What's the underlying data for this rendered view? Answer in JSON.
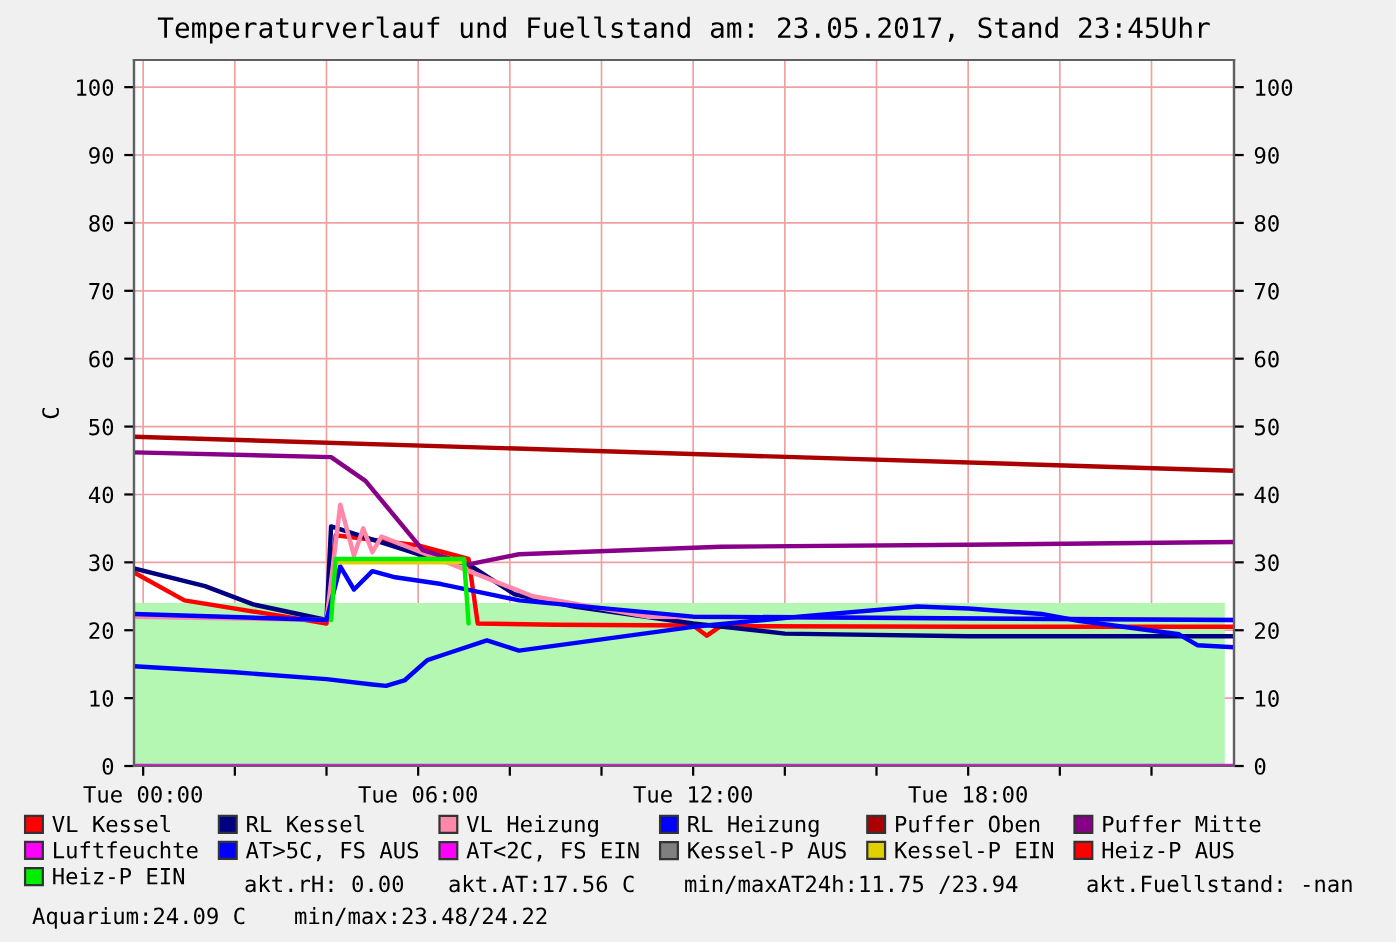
{
  "chart_data": {
    "type": "line",
    "title": "Temperaturverlauf und Fuellstand am: 23.05.2017, Stand 23:45Uhr",
    "ylabel": "C",
    "xlim": [
      "2017-05-22T23:48",
      "2017-05-23T23:48"
    ],
    "ylim": [
      0,
      104
    ],
    "y2lim": [
      0,
      104
    ],
    "xticks": [
      {
        "value": "2017-05-23T00:00",
        "label": "Tue 00:00"
      },
      {
        "value": "2017-05-23T02:00",
        "label": null
      },
      {
        "value": "2017-05-23T04:00",
        "label": null
      },
      {
        "value": "2017-05-23T06:00",
        "label": "Tue 06:00"
      },
      {
        "value": "2017-05-23T08:00",
        "label": null
      },
      {
        "value": "2017-05-23T10:00",
        "label": null
      },
      {
        "value": "2017-05-23T12:00",
        "label": "Tue 12:00"
      },
      {
        "value": "2017-05-23T14:00",
        "label": null
      },
      {
        "value": "2017-05-23T16:00",
        "label": null
      },
      {
        "value": "2017-05-23T18:00",
        "label": "Tue 18:00"
      },
      {
        "value": "2017-05-23T20:00",
        "label": null
      },
      {
        "value": "2017-05-23T22:00",
        "label": null
      }
    ],
    "yticks": [
      0,
      10,
      20,
      30,
      40,
      50,
      60,
      70,
      80,
      90,
      100
    ],
    "y2ticks": [
      0,
      10,
      20,
      30,
      40,
      50,
      60,
      70,
      80,
      90,
      100
    ],
    "grid": true,
    "legend": "bottom",
    "series": [
      {
        "type": "area",
        "color": "#b3f7b3",
        "x": [
          "2017-05-22T23:48",
          "2017-05-23T23:36"
        ],
        "values": [
          24,
          24
        ]
      },
      {
        "name": "VL Kessel",
        "color": "#ff0000",
        "x": [
          "2017-05-22T23:48",
          "2017-05-23T00:54",
          "2017-05-23T03:06",
          "2017-05-23T04:00",
          "2017-05-23T04:12",
          "2017-05-23T06:00",
          "2017-05-23T07:06",
          "2017-05-23T07:18",
          "2017-05-23T09:00",
          "2017-05-23T12:00",
          "2017-05-23T12:18",
          "2017-05-23T12:36",
          "2017-05-23T18:00",
          "2017-05-23T23:48"
        ],
        "values": [
          28.5,
          24.4,
          22,
          21,
          34,
          32.5,
          30.5,
          21,
          20.8,
          20.7,
          19.2,
          20.6,
          20.5,
          20.5
        ]
      },
      {
        "name": "RL Kessel",
        "color": "#000080",
        "x": [
          "2017-05-22T23:48",
          "2017-05-23T01:21",
          "2017-05-23T02:24",
          "2017-05-23T04:00",
          "2017-05-23T04:06",
          "2017-05-23T06:00",
          "2017-05-23T07:06",
          "2017-05-23T08:06",
          "2017-05-23T09:24",
          "2017-05-23T12:00",
          "2017-05-23T14:00",
          "2017-05-23T18:00",
          "2017-05-23T23:48"
        ],
        "values": [
          29.1,
          26.5,
          23.8,
          21.5,
          35.3,
          31.2,
          29.7,
          25.3,
          23.5,
          21,
          19.5,
          19.1,
          19.1
        ]
      },
      {
        "name": "VL Heizung",
        "color": "#ff88aa",
        "x": [
          "2017-05-22T23:48",
          "2017-05-23T04:00",
          "2017-05-23T04:18",
          "2017-05-23T04:36",
          "2017-05-23T04:48",
          "2017-05-23T05:00",
          "2017-05-23T05:12",
          "2017-05-23T05:30",
          "2017-05-23T07:00",
          "2017-05-23T08:30",
          "2017-05-23T11:00",
          "2017-05-23T23:48"
        ],
        "values": [
          22,
          21.5,
          38.5,
          31,
          35,
          31.5,
          33.8,
          33,
          29,
          25,
          22,
          21.5
        ]
      },
      {
        "name": "RL Heizung",
        "color": "#0000ff",
        "x": [
          "2017-05-22T23:48",
          "2017-05-23T04:00",
          "2017-05-23T04:18",
          "2017-05-23T04:36",
          "2017-05-23T05:00",
          "2017-05-23T05:30",
          "2017-05-23T06:30",
          "2017-05-23T08:12",
          "2017-05-23T12:00",
          "2017-05-23T23:48"
        ],
        "values": [
          22.4,
          21.5,
          29.4,
          26,
          28.7,
          27.8,
          26.8,
          24.4,
          22,
          21.5
        ]
      },
      {
        "name": "Puffer Oben",
        "color": "#aa0000",
        "x": [
          "2017-05-22T23:48",
          "2017-05-23T23:48"
        ],
        "values": [
          48.5,
          43.5
        ]
      },
      {
        "name": "Puffer Mitte",
        "color": "#880088",
        "x": [
          "2017-05-22T23:48",
          "2017-05-23T04:06",
          "2017-05-23T04:51",
          "2017-05-23T06:06",
          "2017-05-23T07:06",
          "2017-05-23T08:12",
          "2017-05-23T12:36",
          "2017-05-23T18:00",
          "2017-05-23T23:48"
        ],
        "values": [
          46.2,
          45.5,
          42,
          31.8,
          29.7,
          31.2,
          32.3,
          32.6,
          33
        ]
      },
      {
        "name": "Luftfeuchte",
        "color": "#ff00ff",
        "x": [
          "2017-05-22T23:48",
          "2017-05-23T23:48"
        ],
        "values": [
          0,
          0
        ]
      },
      {
        "name": "AT>5C, FS AUS",
        "color": "#0000ff",
        "x": [
          "2017-05-22T23:48",
          "2017-05-23T02:00",
          "2017-05-23T04:00",
          "2017-05-23T05:00",
          "2017-05-23T05:18",
          "2017-05-23T05:42",
          "2017-05-23T06:12",
          "2017-05-23T06:36",
          "2017-05-23T07:30",
          "2017-05-23T08:12",
          "2017-05-23T12:00",
          "2017-05-23T14:18",
          "2017-05-23T16:54",
          "2017-05-23T18:00",
          "2017-05-23T19:36",
          "2017-05-23T20:24",
          "2017-05-23T22:36",
          "2017-05-23T23:00",
          "2017-05-23T23:48"
        ],
        "values": [
          14.7,
          13.8,
          12.8,
          12,
          11.8,
          12.6,
          15.6,
          16.5,
          18.5,
          17,
          20.5,
          22,
          23.5,
          23.2,
          22.4,
          21.4,
          19.4,
          17.8,
          17.5
        ]
      },
      {
        "name": "AT<2C, FS EIN",
        "color": "#ff00ff",
        "values": [
          null
        ]
      },
      {
        "name": "Kessel-P AUS",
        "color": "#808080",
        "values": [
          null
        ]
      },
      {
        "name": "Kessel-P EIN",
        "color": "#e0d000",
        "x": [
          "2017-05-23T04:12",
          "2017-05-23T07:00"
        ],
        "values": [
          30,
          30
        ]
      },
      {
        "name": "Heiz-P AUS",
        "color": "#ff0000",
        "values": [
          null
        ]
      },
      {
        "name": "Heiz-P EIN",
        "color": "#00ee00",
        "x": [
          "2017-05-23T04:06",
          "2017-05-23T04:12",
          "2017-05-23T07:00",
          "2017-05-23T07:06"
        ],
        "values": [
          21.5,
          30.5,
          30.5,
          21
        ]
      }
    ],
    "annotations": [
      "akt.rH: 0.00",
      "akt.AT:17.56 C",
      "min/maxAT24h:11.75 /23.94",
      "akt.Fuellstand: -nan",
      "Aquarium:24.09 C",
      "min/max:23.48/24.22"
    ]
  }
}
